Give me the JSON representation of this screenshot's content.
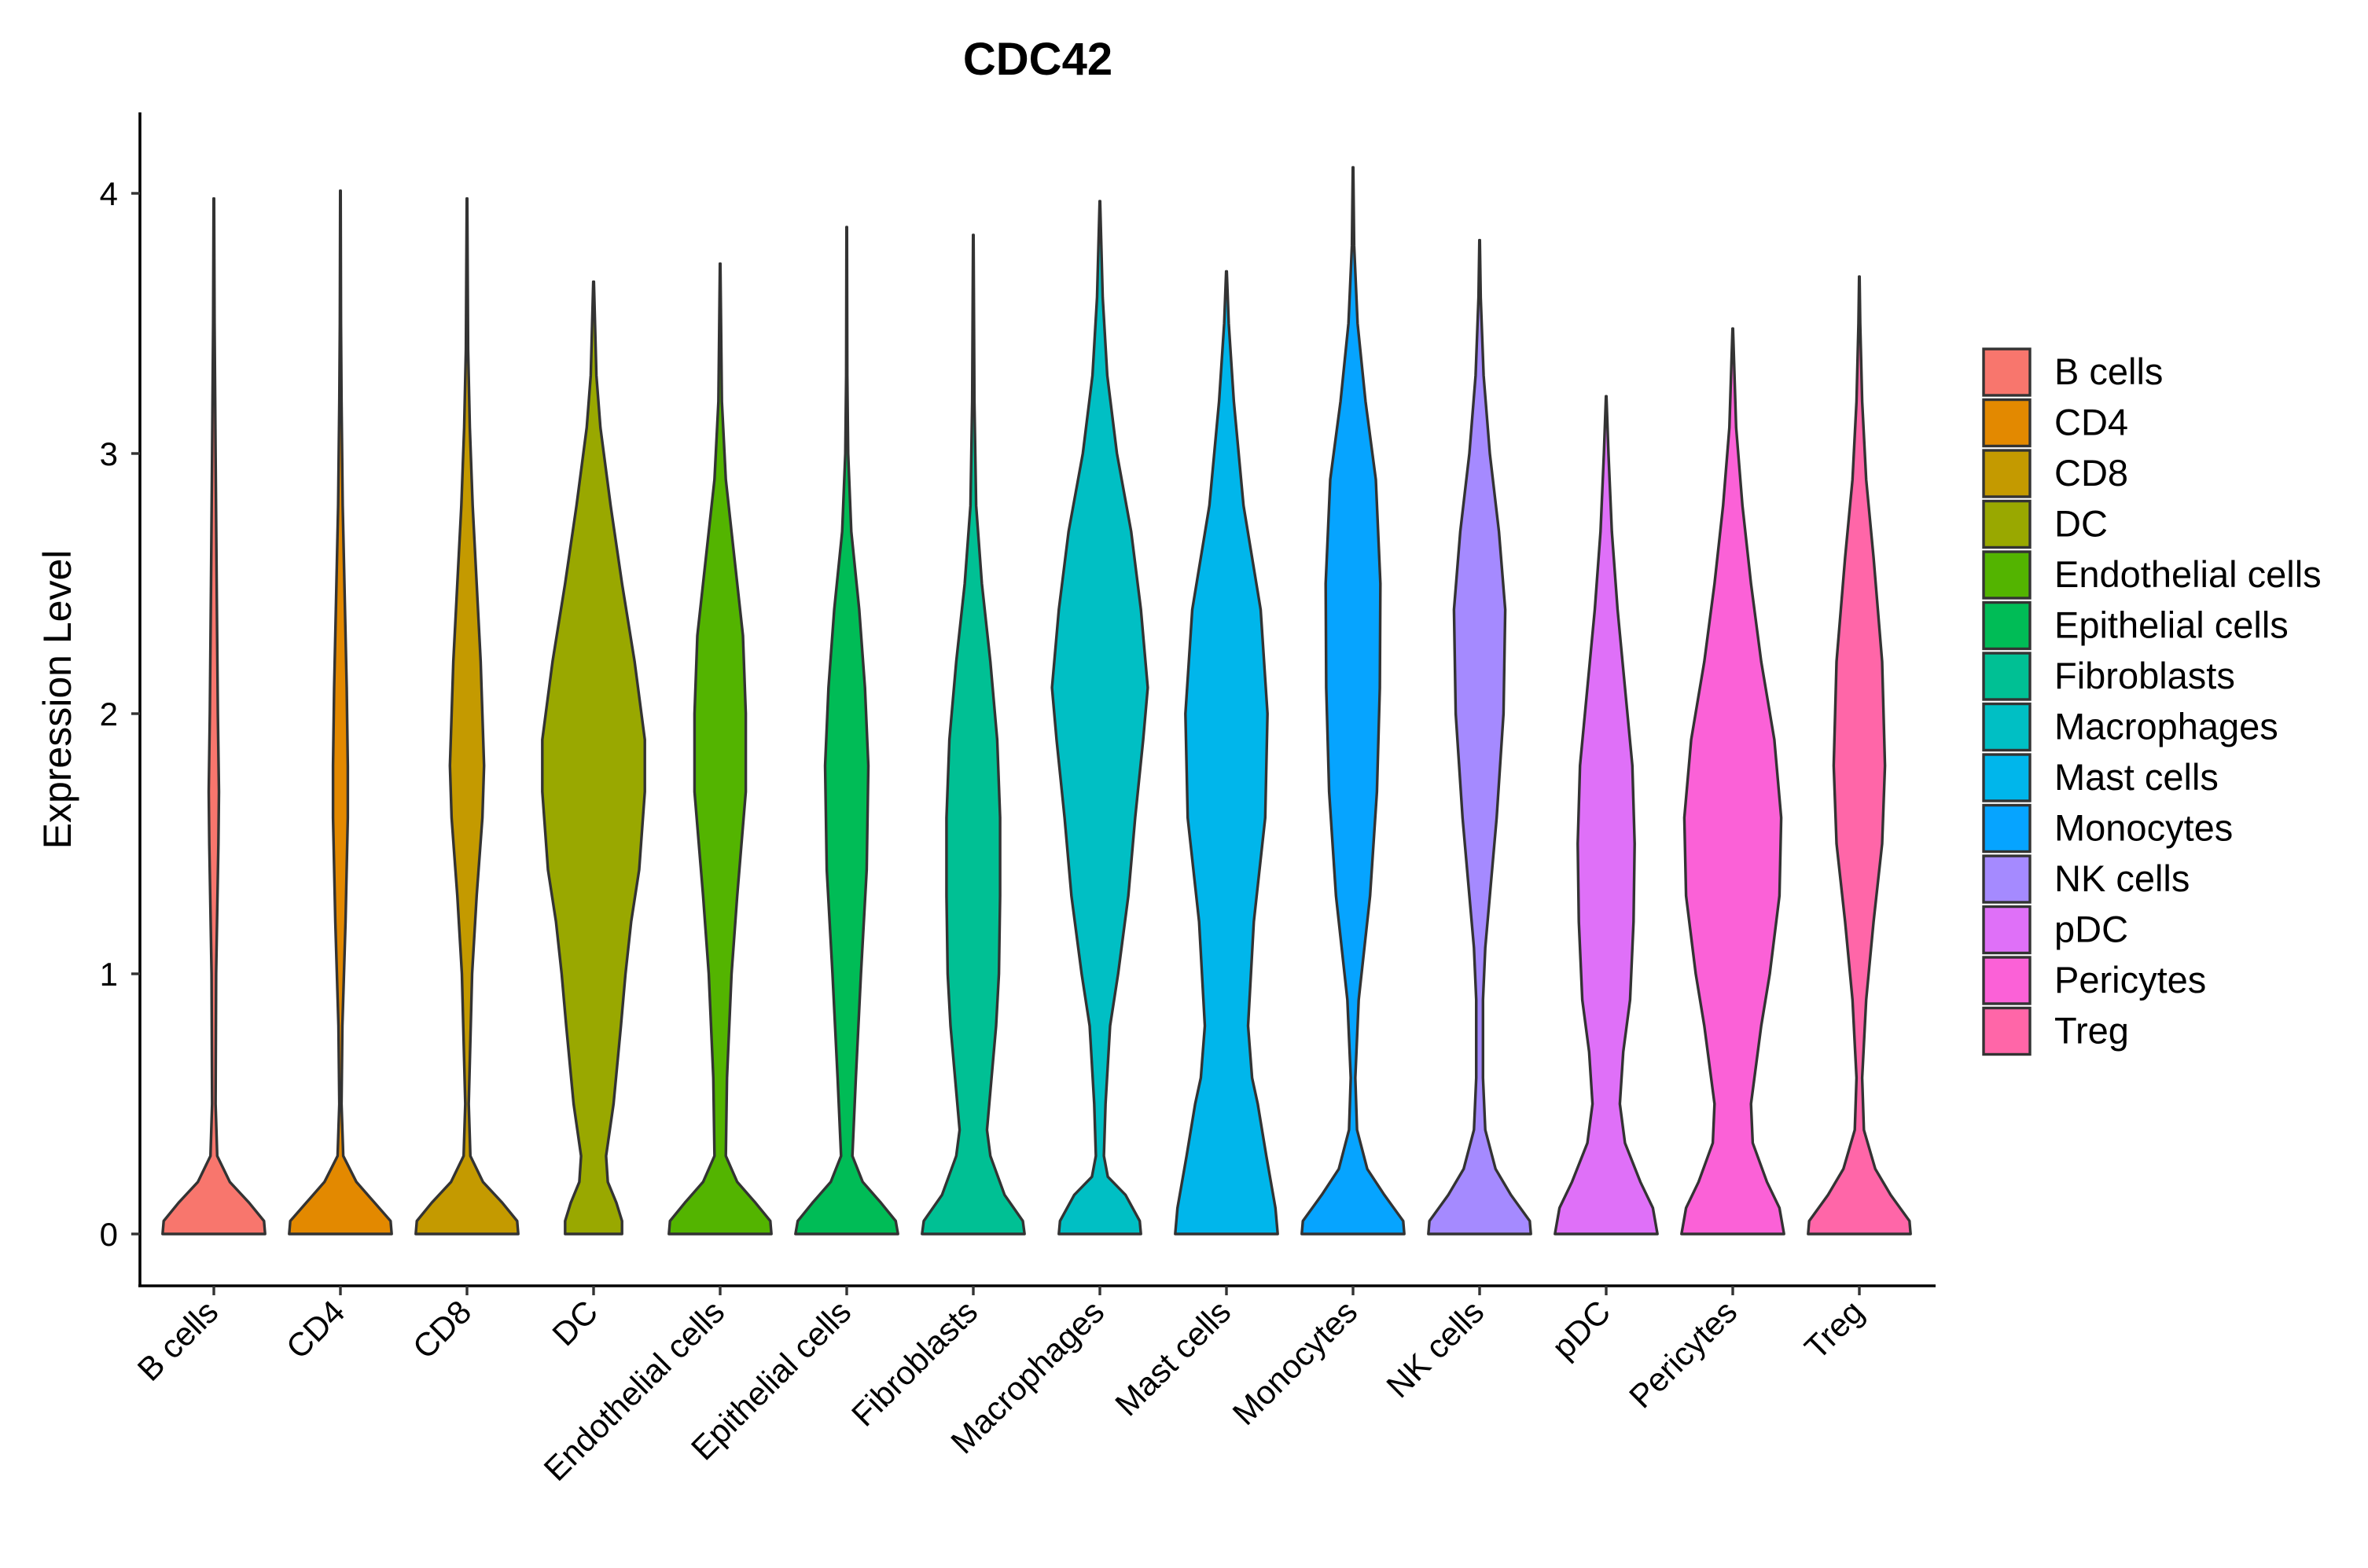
{
  "chart_data": {
    "type": "violin",
    "title": "CDC42",
    "xlabel": "",
    "ylabel": "Expression Level",
    "ylim": [
      -0.2,
      4.3
    ],
    "yticks": [
      0,
      1,
      2,
      3,
      4
    ],
    "categories": [
      "B cells",
      "CD4",
      "CD8",
      "DC",
      "Endothelial cells",
      "Epithelial cells",
      "Fibroblasts",
      "Macrophages",
      "Mast cells",
      "Monocytes",
      "NK cells",
      "pDC",
      "Pericytes",
      "Treg"
    ],
    "colors": [
      "#F8766D",
      "#E38900",
      "#C49A00",
      "#99A800",
      "#53B400",
      "#00BC56",
      "#00C094",
      "#00BFC4",
      "#00B6EB",
      "#06A4FF",
      "#A58AFF",
      "#DF70F8",
      "#FB61D7",
      "#FF66A8"
    ],
    "legend": {
      "position": "right",
      "entries": [
        "B cells",
        "CD4",
        "CD8",
        "DC",
        "Endothelial cells",
        "Epithelial cells",
        "Fibroblasts",
        "Macrophages",
        "Mast cells",
        "Monocytes",
        "NK cells",
        "pDC",
        "Pericytes",
        "Treg"
      ]
    },
    "series": [
      {
        "name": "B cells",
        "max": 3.98,
        "zero_width": 0.9,
        "profile": [
          [
            0.0,
            0.9
          ],
          [
            0.05,
            0.88
          ],
          [
            0.12,
            0.62
          ],
          [
            0.2,
            0.28
          ],
          [
            0.3,
            0.06
          ],
          [
            0.5,
            0.03
          ],
          [
            1.0,
            0.04
          ],
          [
            1.5,
            0.08
          ],
          [
            1.7,
            0.09
          ],
          [
            2.0,
            0.07
          ],
          [
            2.5,
            0.05
          ],
          [
            3.0,
            0.03
          ],
          [
            3.5,
            0.012
          ],
          [
            3.98,
            0.004
          ]
        ]
      },
      {
        "name": "CD4",
        "max": 4.01,
        "zero_width": 0.9,
        "profile": [
          [
            0.0,
            0.9
          ],
          [
            0.05,
            0.88
          ],
          [
            0.12,
            0.6
          ],
          [
            0.2,
            0.28
          ],
          [
            0.3,
            0.05
          ],
          [
            0.5,
            0.02
          ],
          [
            0.8,
            0.035
          ],
          [
            1.2,
            0.09
          ],
          [
            1.6,
            0.13
          ],
          [
            1.8,
            0.13
          ],
          [
            2.1,
            0.11
          ],
          [
            2.4,
            0.08
          ],
          [
            2.8,
            0.04
          ],
          [
            3.2,
            0.02
          ],
          [
            3.5,
            0.01
          ],
          [
            4.01,
            0.004
          ]
        ]
      },
      {
        "name": "CD8",
        "max": 3.98,
        "zero_width": 0.9,
        "profile": [
          [
            0.0,
            0.9
          ],
          [
            0.05,
            0.88
          ],
          [
            0.12,
            0.62
          ],
          [
            0.2,
            0.28
          ],
          [
            0.3,
            0.06
          ],
          [
            0.5,
            0.03
          ],
          [
            1.0,
            0.09
          ],
          [
            1.3,
            0.17
          ],
          [
            1.6,
            0.27
          ],
          [
            1.8,
            0.3
          ],
          [
            2.2,
            0.24
          ],
          [
            2.5,
            0.17
          ],
          [
            2.8,
            0.1
          ],
          [
            3.1,
            0.05
          ],
          [
            3.4,
            0.02
          ],
          [
            3.98,
            0.004
          ]
        ]
      },
      {
        "name": "DC",
        "max": 3.66,
        "zero_width": 0.5,
        "profile": [
          [
            0.0,
            0.5
          ],
          [
            0.05,
            0.5
          ],
          [
            0.12,
            0.4
          ],
          [
            0.2,
            0.25
          ],
          [
            0.3,
            0.22
          ],
          [
            0.5,
            0.35
          ],
          [
            0.8,
            0.48
          ],
          [
            1.0,
            0.56
          ],
          [
            1.2,
            0.66
          ],
          [
            1.4,
            0.8
          ],
          [
            1.7,
            0.9
          ],
          [
            1.9,
            0.9
          ],
          [
            2.2,
            0.72
          ],
          [
            2.5,
            0.5
          ],
          [
            2.8,
            0.3
          ],
          [
            3.1,
            0.12
          ],
          [
            3.3,
            0.05
          ],
          [
            3.66,
            0.005
          ]
        ]
      },
      {
        "name": "Endothelial cells",
        "max": 3.73,
        "zero_width": 0.9,
        "profile": [
          [
            0.0,
            0.9
          ],
          [
            0.05,
            0.88
          ],
          [
            0.12,
            0.62
          ],
          [
            0.2,
            0.3
          ],
          [
            0.3,
            0.1
          ],
          [
            0.6,
            0.12
          ],
          [
            1.0,
            0.2
          ],
          [
            1.3,
            0.3
          ],
          [
            1.7,
            0.45
          ],
          [
            2.0,
            0.45
          ],
          [
            2.3,
            0.4
          ],
          [
            2.6,
            0.25
          ],
          [
            2.9,
            0.1
          ],
          [
            3.2,
            0.03
          ],
          [
            3.73,
            0.004
          ]
        ]
      },
      {
        "name": "Epithelial cells",
        "max": 3.87,
        "zero_width": 0.9,
        "profile": [
          [
            0.0,
            0.9
          ],
          [
            0.05,
            0.86
          ],
          [
            0.12,
            0.6
          ],
          [
            0.2,
            0.28
          ],
          [
            0.3,
            0.1
          ],
          [
            0.6,
            0.16
          ],
          [
            1.0,
            0.25
          ],
          [
            1.4,
            0.35
          ],
          [
            1.8,
            0.38
          ],
          [
            2.1,
            0.32
          ],
          [
            2.4,
            0.22
          ],
          [
            2.7,
            0.08
          ],
          [
            3.0,
            0.025
          ],
          [
            3.3,
            0.01
          ],
          [
            3.87,
            0.004
          ]
        ]
      },
      {
        "name": "Fibroblasts",
        "max": 3.84,
        "zero_width": 0.9,
        "profile": [
          [
            0.0,
            0.9
          ],
          [
            0.05,
            0.87
          ],
          [
            0.15,
            0.55
          ],
          [
            0.3,
            0.3
          ],
          [
            0.4,
            0.24
          ],
          [
            0.6,
            0.32
          ],
          [
            0.8,
            0.4
          ],
          [
            1.0,
            0.45
          ],
          [
            1.3,
            0.47
          ],
          [
            1.6,
            0.47
          ],
          [
            1.9,
            0.42
          ],
          [
            2.2,
            0.3
          ],
          [
            2.5,
            0.15
          ],
          [
            2.8,
            0.05
          ],
          [
            3.2,
            0.02
          ],
          [
            3.84,
            0.004
          ]
        ]
      },
      {
        "name": "Macrophages",
        "max": 3.97,
        "zero_width": 0.72,
        "profile": [
          [
            0.0,
            0.72
          ],
          [
            0.05,
            0.7
          ],
          [
            0.15,
            0.45
          ],
          [
            0.22,
            0.14
          ],
          [
            0.3,
            0.07
          ],
          [
            0.5,
            0.1
          ],
          [
            0.8,
            0.18
          ],
          [
            1.0,
            0.32
          ],
          [
            1.3,
            0.5
          ],
          [
            1.6,
            0.62
          ],
          [
            1.9,
            0.76
          ],
          [
            2.1,
            0.84
          ],
          [
            2.4,
            0.72
          ],
          [
            2.7,
            0.55
          ],
          [
            3.0,
            0.3
          ],
          [
            3.3,
            0.13
          ],
          [
            3.6,
            0.05
          ],
          [
            3.97,
            0.004
          ]
        ]
      },
      {
        "name": "Mast cells",
        "max": 3.7,
        "zero_width": 0.9,
        "profile": [
          [
            0.0,
            0.9
          ],
          [
            0.1,
            0.86
          ],
          [
            0.3,
            0.7
          ],
          [
            0.5,
            0.55
          ],
          [
            0.6,
            0.45
          ],
          [
            0.8,
            0.38
          ],
          [
            1.2,
            0.48
          ],
          [
            1.6,
            0.68
          ],
          [
            2.0,
            0.72
          ],
          [
            2.4,
            0.6
          ],
          [
            2.8,
            0.3
          ],
          [
            3.2,
            0.13
          ],
          [
            3.5,
            0.04
          ],
          [
            3.7,
            0.005
          ]
        ]
      },
      {
        "name": "Monocytes",
        "max": 4.1,
        "zero_width": 0.9,
        "profile": [
          [
            0.0,
            0.9
          ],
          [
            0.05,
            0.88
          ],
          [
            0.15,
            0.55
          ],
          [
            0.25,
            0.25
          ],
          [
            0.4,
            0.07
          ],
          [
            0.6,
            0.04
          ],
          [
            0.9,
            0.1
          ],
          [
            1.3,
            0.3
          ],
          [
            1.7,
            0.42
          ],
          [
            2.1,
            0.47
          ],
          [
            2.5,
            0.48
          ],
          [
            2.9,
            0.4
          ],
          [
            3.2,
            0.22
          ],
          [
            3.5,
            0.08
          ],
          [
            3.8,
            0.02
          ],
          [
            4.1,
            0.004
          ]
        ]
      },
      {
        "name": "NK cells",
        "max": 3.82,
        "zero_width": 0.9,
        "profile": [
          [
            0.0,
            0.9
          ],
          [
            0.05,
            0.88
          ],
          [
            0.15,
            0.55
          ],
          [
            0.25,
            0.28
          ],
          [
            0.4,
            0.1
          ],
          [
            0.6,
            0.06
          ],
          [
            0.9,
            0.06
          ],
          [
            1.1,
            0.1
          ],
          [
            1.3,
            0.18
          ],
          [
            1.6,
            0.3
          ],
          [
            2.0,
            0.42
          ],
          [
            2.4,
            0.45
          ],
          [
            2.7,
            0.34
          ],
          [
            3.0,
            0.18
          ],
          [
            3.3,
            0.07
          ],
          [
            3.6,
            0.02
          ],
          [
            3.82,
            0.004
          ]
        ]
      },
      {
        "name": "pDC",
        "max": 3.22,
        "zero_width": 0.9,
        "profile": [
          [
            0.0,
            0.9
          ],
          [
            0.1,
            0.82
          ],
          [
            0.2,
            0.6
          ],
          [
            0.35,
            0.33
          ],
          [
            0.5,
            0.24
          ],
          [
            0.7,
            0.3
          ],
          [
            0.9,
            0.42
          ],
          [
            1.2,
            0.48
          ],
          [
            1.5,
            0.5
          ],
          [
            1.8,
            0.46
          ],
          [
            2.1,
            0.33
          ],
          [
            2.4,
            0.2
          ],
          [
            2.7,
            0.1
          ],
          [
            3.0,
            0.04
          ],
          [
            3.22,
            0.004
          ]
        ]
      },
      {
        "name": "Pericytes",
        "max": 3.48,
        "zero_width": 0.9,
        "profile": [
          [
            0.0,
            0.9
          ],
          [
            0.1,
            0.82
          ],
          [
            0.2,
            0.6
          ],
          [
            0.35,
            0.35
          ],
          [
            0.5,
            0.32
          ],
          [
            0.8,
            0.5
          ],
          [
            1.0,
            0.65
          ],
          [
            1.3,
            0.82
          ],
          [
            1.6,
            0.85
          ],
          [
            1.9,
            0.73
          ],
          [
            2.2,
            0.5
          ],
          [
            2.5,
            0.32
          ],
          [
            2.8,
            0.17
          ],
          [
            3.1,
            0.06
          ],
          [
            3.48,
            0.004
          ]
        ]
      },
      {
        "name": "Treg",
        "max": 3.68,
        "zero_width": 0.9,
        "profile": [
          [
            0.0,
            0.9
          ],
          [
            0.05,
            0.88
          ],
          [
            0.15,
            0.55
          ],
          [
            0.25,
            0.28
          ],
          [
            0.4,
            0.08
          ],
          [
            0.6,
            0.05
          ],
          [
            0.9,
            0.12
          ],
          [
            1.2,
            0.25
          ],
          [
            1.5,
            0.4
          ],
          [
            1.8,
            0.45
          ],
          [
            2.2,
            0.4
          ],
          [
            2.6,
            0.25
          ],
          [
            2.9,
            0.12
          ],
          [
            3.2,
            0.05
          ],
          [
            3.5,
            0.015
          ],
          [
            3.68,
            0.004
          ]
        ]
      }
    ]
  }
}
